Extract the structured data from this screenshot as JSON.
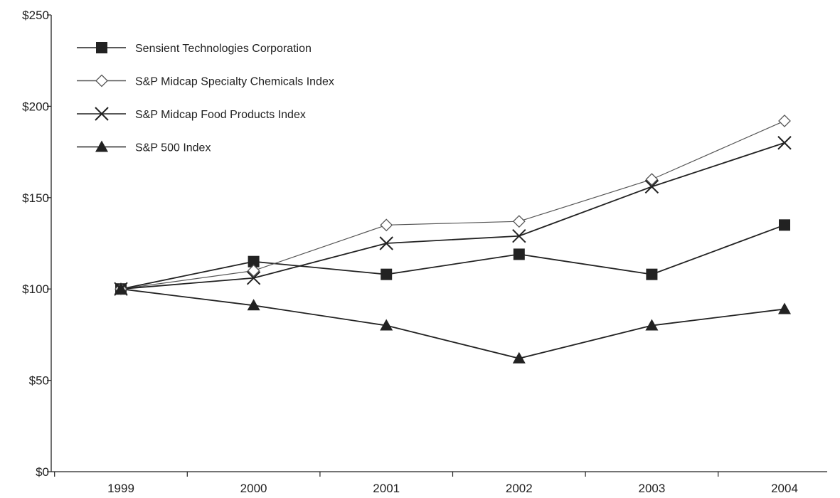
{
  "chart_data": {
    "type": "line",
    "title": "",
    "xlabel": "",
    "ylabel": "",
    "x": [
      "1999",
      "2000",
      "2001",
      "2002",
      "2003",
      "2004"
    ],
    "ylim": [
      0,
      250
    ],
    "yticks": [
      0,
      50,
      100,
      150,
      200,
      250
    ],
    "ytick_labels": [
      "$0",
      "$50",
      "$100",
      "$150",
      "$200",
      "$250"
    ],
    "grid": false,
    "legend_position": "top-left",
    "series": [
      {
        "name": "Sensient Technologies Corporation",
        "marker": "filled-square",
        "color": "#222222",
        "values": [
          100,
          115,
          108,
          119,
          108,
          135
        ]
      },
      {
        "name": "S&P Midcap Specialty Chemicals Index",
        "marker": "open-diamond",
        "color": "#555555",
        "values": [
          100,
          110,
          135,
          137,
          160,
          192
        ]
      },
      {
        "name": "S&P Midcap Food Products Index",
        "marker": "x-cross",
        "color": "#222222",
        "values": [
          100,
          106,
          125,
          129,
          156,
          180
        ]
      },
      {
        "name": "S&P 500 Index",
        "marker": "filled-triangle",
        "color": "#222222",
        "values": [
          100,
          91,
          80,
          62,
          80,
          89
        ]
      }
    ]
  }
}
